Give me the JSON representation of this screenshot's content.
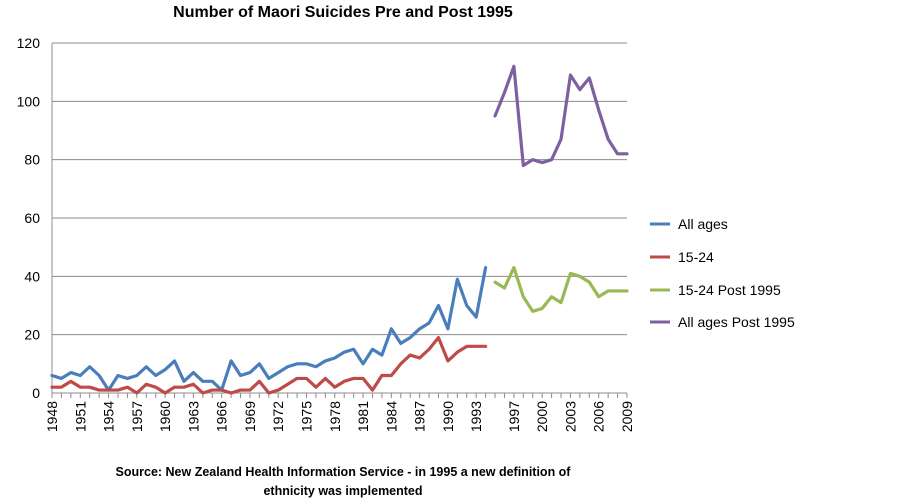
{
  "chart_data": {
    "type": "line",
    "title": "Number of Maori Suicides Pre and Post 1995",
    "source_lines": [
      "Source: New Zealand Health Information Service - in 1995 a new definition of",
      "ethnicity was implemented"
    ],
    "ylim": [
      0,
      120
    ],
    "yticks": [
      0,
      20,
      40,
      60,
      80,
      100,
      120
    ],
    "xlim": [
      1948,
      2009
    ],
    "xticks": [
      1948,
      1951,
      1954,
      1957,
      1960,
      1963,
      1966,
      1969,
      1972,
      1975,
      1978,
      1981,
      1984,
      1987,
      1990,
      1993,
      1997,
      2000,
      2003,
      2006,
      2009
    ],
    "grid": true,
    "legend_position": "right",
    "series": [
      {
        "name": "All ages",
        "color": "#4a7ebb",
        "x": [
          1948,
          1949,
          1950,
          1951,
          1952,
          1953,
          1954,
          1955,
          1956,
          1957,
          1958,
          1959,
          1960,
          1961,
          1962,
          1963,
          1964,
          1965,
          1966,
          1967,
          1968,
          1969,
          1970,
          1971,
          1972,
          1973,
          1974,
          1975,
          1976,
          1977,
          1978,
          1979,
          1980,
          1981,
          1982,
          1983,
          1984,
          1985,
          1986,
          1987,
          1988,
          1989,
          1990,
          1991,
          1992,
          1993,
          1994
        ],
        "y": [
          6,
          5,
          7,
          6,
          9,
          6,
          1,
          6,
          5,
          6,
          9,
          6,
          8,
          11,
          4,
          7,
          4,
          4,
          1,
          11,
          6,
          7,
          10,
          5,
          7,
          9,
          10,
          10,
          9,
          11,
          12,
          14,
          15,
          10,
          15,
          13,
          22,
          17,
          19,
          22,
          24,
          30,
          22,
          39,
          30,
          26,
          43
        ]
      },
      {
        "name": "15-24",
        "color": "#be4b48",
        "x": [
          1948,
          1949,
          1950,
          1951,
          1952,
          1953,
          1954,
          1955,
          1956,
          1957,
          1958,
          1959,
          1960,
          1961,
          1962,
          1963,
          1964,
          1965,
          1966,
          1967,
          1968,
          1969,
          1970,
          1971,
          1972,
          1973,
          1974,
          1975,
          1976,
          1977,
          1978,
          1979,
          1980,
          1981,
          1982,
          1983,
          1984,
          1985,
          1986,
          1987,
          1988,
          1989,
          1990,
          1991,
          1992,
          1993,
          1994
        ],
        "y": [
          2,
          2,
          4,
          2,
          2,
          1,
          1,
          1,
          2,
          0,
          3,
          2,
          0,
          2,
          2,
          3,
          0,
          1,
          1,
          0,
          1,
          1,
          4,
          0,
          1,
          3,
          5,
          5,
          2,
          5,
          2,
          4,
          5,
          5,
          1,
          6,
          6,
          10,
          13,
          12,
          15,
          19,
          11,
          14,
          16,
          16,
          16
        ]
      },
      {
        "name": "15-24 Post 1995",
        "color": "#98b954",
        "x": [
          1995,
          1996,
          1997,
          1998,
          1999,
          2000,
          2001,
          2002,
          2003,
          2004,
          2005,
          2006,
          2007,
          2008,
          2009
        ],
        "y": [
          38,
          36,
          43,
          33,
          28,
          29,
          33,
          31,
          41,
          40,
          38,
          33,
          35,
          35,
          35
        ]
      },
      {
        "name": "All ages Post 1995",
        "color": "#7d60a0",
        "x": [
          1995,
          1996,
          1997,
          1998,
          1999,
          2000,
          2001,
          2002,
          2003,
          2004,
          2005,
          2006,
          2007,
          2008,
          2009
        ],
        "y": [
          95,
          103,
          112,
          78,
          80,
          79,
          80,
          87,
          109,
          104,
          108,
          97,
          87,
          82,
          82
        ]
      }
    ]
  }
}
